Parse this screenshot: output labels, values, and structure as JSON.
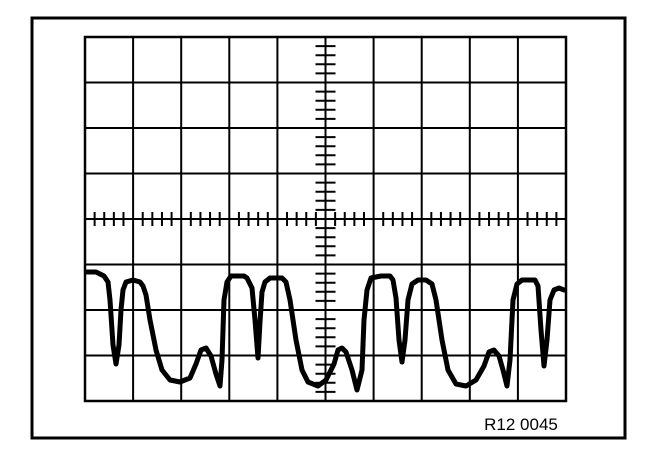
{
  "figure": {
    "reference_code": "R12 0045",
    "screen": {
      "horizontal_divisions": 10,
      "vertical_divisions": 8,
      "minor_ticks_per_division": 5
    },
    "line_color": "#000000",
    "background_color": "#ffffff"
  }
}
